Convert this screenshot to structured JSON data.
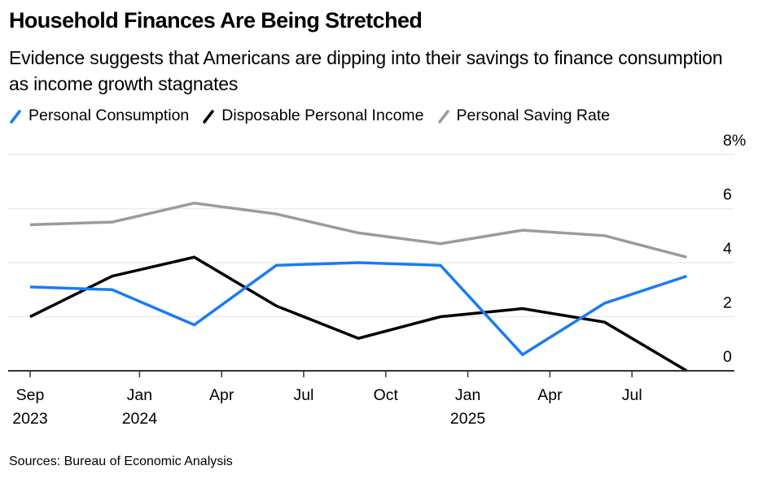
{
  "header": {
    "title": "Household Finances Are Being Stretched",
    "subtitle": "Evidence suggests that Americans are dipping into their savings to finance consumption as income growth stagnates"
  },
  "footer": {
    "source": "Sources: Bureau of Economic Analysis"
  },
  "chart_data": {
    "type": "line",
    "title": "Household Finances Are Being Stretched",
    "subtitle": "Evidence suggests that Americans are dipping into their savings to finance consumption as income growth stagnates",
    "xlabel": "",
    "ylabel": "",
    "x": [
      "2023-09",
      "2023-12",
      "2024-03",
      "2024-06",
      "2024-09",
      "2024-12",
      "2025-03",
      "2025-06",
      "2025-09"
    ],
    "x_ticks": [
      {
        "month": "2023-09",
        "line1": "Sep",
        "line2": "2023"
      },
      {
        "month": "2024-01",
        "line1": "Jan",
        "line2": "2024"
      },
      {
        "month": "2024-04",
        "line1": "Apr",
        "line2": ""
      },
      {
        "month": "2024-07",
        "line1": "Jul",
        "line2": ""
      },
      {
        "month": "2024-10",
        "line1": "Oct",
        "line2": ""
      },
      {
        "month": "2025-01",
        "line1": "Jan",
        "line2": "2025"
      },
      {
        "month": "2025-04",
        "line1": "Apr",
        "line2": ""
      },
      {
        "month": "2025-07",
        "line1": "Jul",
        "line2": ""
      }
    ],
    "x_range": [
      "2023-09",
      "2025-11"
    ],
    "ylim": [
      0,
      8
    ],
    "y_ticks": [
      0,
      2,
      4,
      6,
      8
    ],
    "y_tick_labels": [
      "0",
      "2",
      "4",
      "6",
      "8%"
    ],
    "y_axis_position": "right",
    "grid": true,
    "legend_position": "top-left",
    "series": [
      {
        "name": "Personal Consumption",
        "color": "#1a7bf2",
        "values": [
          3.1,
          3.0,
          1.7,
          3.9,
          4.0,
          3.9,
          0.6,
          2.5,
          3.5
        ]
      },
      {
        "name": "Disposable Personal Income",
        "color": "#000000",
        "values": [
          2.0,
          3.5,
          4.2,
          2.4,
          1.2,
          2.0,
          2.3,
          1.8,
          0.0
        ]
      },
      {
        "name": "Personal Saving Rate",
        "color": "#9b9b9b",
        "values": [
          5.4,
          5.5,
          6.2,
          5.8,
          5.1,
          4.7,
          5.2,
          5.0,
          4.2
        ]
      }
    ]
  }
}
